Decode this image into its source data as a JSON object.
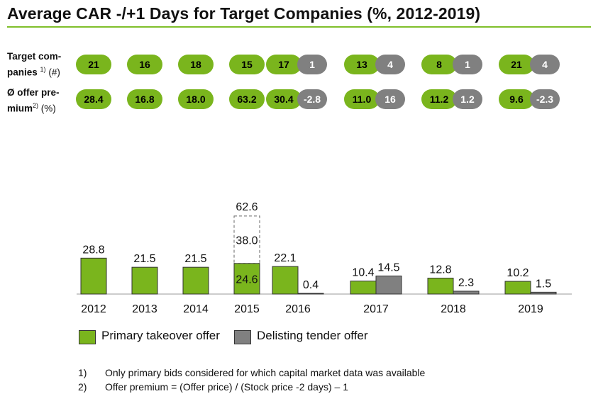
{
  "title": "Average CAR -/+1 Days for Target Companies (%, 2012-2019)",
  "rows": {
    "companies_label_1": "Target com-",
    "companies_label_2": "panies",
    "companies_sup": "1)",
    "companies_unit": "(#)",
    "premium_label_1": "Ø offer pre-",
    "premium_label_2": "mium",
    "premium_sup": "2)",
    "premium_unit": "(%)"
  },
  "colors": {
    "primary": "#7ab51d",
    "delisting": "#808080",
    "accent_rule": "#7fbf2a"
  },
  "legend": {
    "primary": "Primary takeover offer",
    "delisting": "Delisting tender offer"
  },
  "footnotes": [
    {
      "num": "1)",
      "text": "Only primary bids considered for which capital market data was available"
    },
    {
      "num": "2)",
      "text": "Offer premium = (Offer price) / (Stock price -2 days) – 1"
    }
  ],
  "chart_data": {
    "type": "bar",
    "categories": [
      "2012",
      "2013",
      "2014",
      "2015",
      "2016",
      "2017",
      "2018",
      "2019"
    ],
    "series": [
      {
        "name": "Primary takeover offer",
        "values": [
          28.8,
          21.5,
          21.5,
          24.6,
          22.1,
          10.4,
          12.8,
          10.2
        ]
      },
      {
        "name": "Delisting tender offer",
        "values": [
          null,
          null,
          null,
          null,
          0.4,
          14.5,
          2.3,
          1.5
        ]
      }
    ],
    "extra_segment": {
      "category": "2015",
      "value": 38.0,
      "total": 62.6,
      "style": "dashed"
    },
    "target_companies": {
      "primary": [
        "21",
        "16",
        "18",
        "15",
        "17",
        "13",
        "8",
        "21"
      ],
      "delisting": [
        null,
        null,
        null,
        null,
        "1",
        "4",
        "1",
        "4"
      ]
    },
    "offer_premium": {
      "primary": [
        "28.4",
        "16.8",
        "18.0",
        "63.2",
        "30.4",
        "11.0",
        "11.2",
        "9.6"
      ],
      "delisting": [
        null,
        null,
        null,
        null,
        "-2.8",
        "16",
        "1.2",
        "-2.3"
      ]
    },
    "ylim": [
      0,
      65
    ]
  }
}
